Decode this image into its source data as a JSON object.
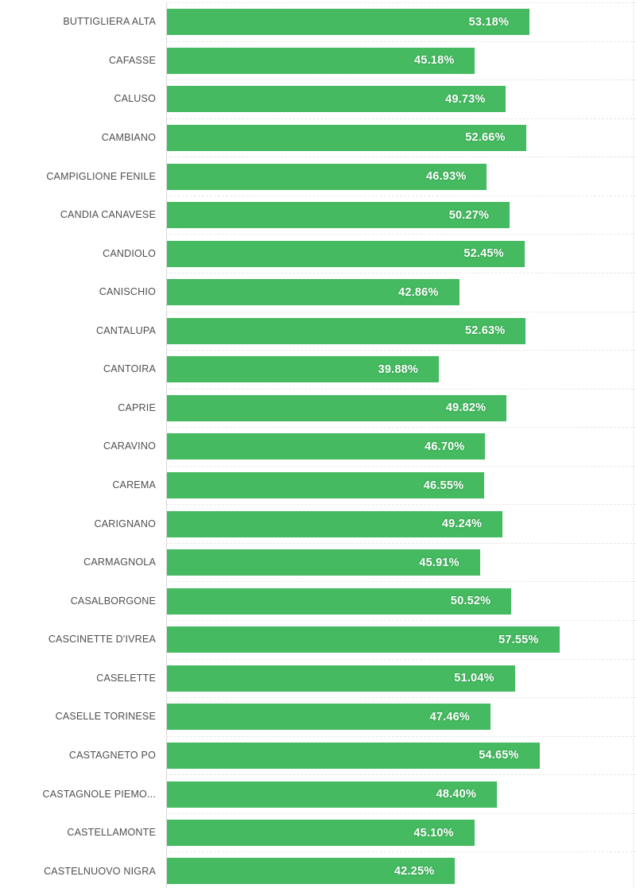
{
  "chart_data": {
    "type": "bar",
    "orientation": "horizontal",
    "title": "",
    "xlabel": "",
    "ylabel": "",
    "xlim": [
      0,
      68.8
    ],
    "grid": "dashed-horizontal-row-separators",
    "legend": "none",
    "bar_color": "#45ba60",
    "value_label_color": "#ffffff",
    "category_label_color": "#4f4f4f",
    "axis_line_color": "#d9d9d9",
    "gridline_color": "#e7e7e7",
    "categories": [
      "BUTTIGLIERA ALTA",
      "CAFASSE",
      "CALUSO",
      "CAMBIANO",
      "CAMPIGLIONE FENILE",
      "CANDIA CANAVESE",
      "CANDIOLO",
      "CANISCHIO",
      "CANTALUPA",
      "CANTOIRA",
      "CAPRIE",
      "CARAVINO",
      "CAREMA",
      "CARIGNANO",
      "CARMAGNOLA",
      "CASALBORGONE",
      "CASCINETTE D'IVREA",
      "CASELETTE",
      "CASELLE TORINESE",
      "CASTAGNETO PO",
      "CASTAGNOLE PIEMO...",
      "CASTELLAMONTE",
      "CASTELNUOVO NIGRA"
    ],
    "values": [
      53.18,
      45.18,
      49.73,
      52.66,
      46.93,
      50.27,
      52.45,
      42.86,
      52.63,
      39.88,
      49.82,
      46.7,
      46.55,
      49.24,
      45.91,
      50.52,
      57.55,
      51.04,
      47.46,
      54.65,
      48.4,
      45.1,
      42.25
    ],
    "value_labels": [
      "53.18%",
      "45.18%",
      "49.73%",
      "52.66%",
      "46.93%",
      "50.27%",
      "52.45%",
      "42.86%",
      "52.63%",
      "39.88%",
      "49.82%",
      "46.70%",
      "46.55%",
      "49.24%",
      "45.91%",
      "50.52%",
      "57.55%",
      "51.04%",
      "47.46%",
      "54.65%",
      "48.40%",
      "45.10%",
      "42.25%"
    ]
  }
}
